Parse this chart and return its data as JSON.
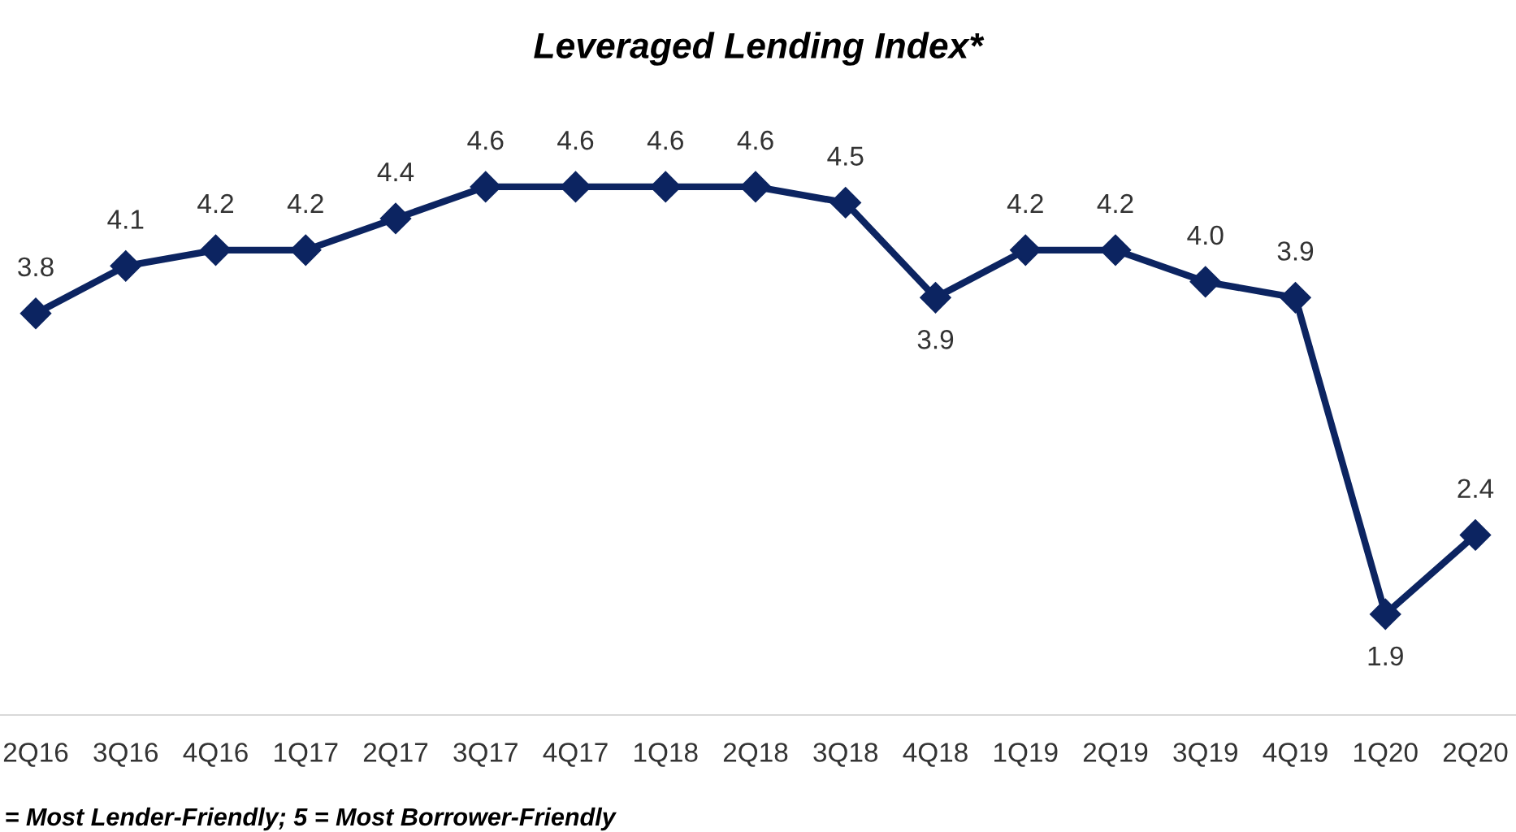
{
  "chart_data": {
    "type": "line",
    "title": "Leveraged Lending Index*",
    "categories": [
      "2Q16",
      "3Q16",
      "4Q16",
      "1Q17",
      "2Q17",
      "3Q17",
      "4Q17",
      "1Q18",
      "2Q18",
      "3Q18",
      "4Q18",
      "1Q19",
      "2Q19",
      "3Q19",
      "4Q19",
      "1Q20",
      "2Q20"
    ],
    "series": [
      {
        "color": "#0c2461",
        "values": [
          3.8,
          4.1,
          4.2,
          4.2,
          4.4,
          4.6,
          4.6,
          4.6,
          4.6,
          4.5,
          3.9,
          4.2,
          4.2,
          4.0,
          3.9,
          1.9,
          2.4
        ],
        "value_labels": [
          "3.8",
          "4.1",
          "4.2",
          "4.2",
          "4.4",
          "4.6",
          "4.6",
          "4.6",
          "4.6",
          "4.5",
          "3.9",
          "4.2",
          "4.2",
          "4.0",
          "3.9",
          "1.9",
          "2.4"
        ]
      }
    ],
    "marker": "diamond",
    "line_style": "solid",
    "grid": false,
    "legend": false,
    "annotations": [
      "= Most Lender-Friendly; 5 = Most Borrower-Friendly"
    ]
  }
}
